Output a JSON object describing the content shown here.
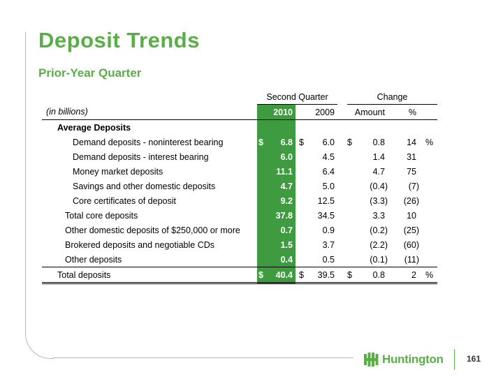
{
  "slide": {
    "title": "Deposit Trends",
    "subtitle": "Prior-Year Quarter",
    "page_number": "161",
    "logo_text": "Huntington",
    "accent_color": "#5aae46",
    "highlight_color": "#3f9b3f"
  },
  "table": {
    "group_headers": {
      "second_quarter": "Second Quarter",
      "change": "Change"
    },
    "column_headers": {
      "units": "(in billions)",
      "col_2010": "2010",
      "col_2009": "2009",
      "amount": "Amount",
      "pct": "%"
    },
    "section_label": "Average Deposits",
    "rows": [
      {
        "label": "Demand deposits - noninterest bearing",
        "cur_sign": "$",
        "v2010": "6.8",
        "prior_sign": "$",
        "v2009": "6.0",
        "amt_sign": "$",
        "amount": "0.8",
        "pct": "14",
        "pct_sym": "%"
      },
      {
        "label": "Demand deposits - interest bearing",
        "cur_sign": "",
        "v2010": "6.0",
        "prior_sign": "",
        "v2009": "4.5",
        "amt_sign": "",
        "amount": "1.4",
        "pct": "31",
        "pct_sym": ""
      },
      {
        "label": "Money market deposits",
        "cur_sign": "",
        "v2010": "11.1",
        "prior_sign": "",
        "v2009": "6.4",
        "amt_sign": "",
        "amount": "4.7",
        "pct": "75",
        "pct_sym": ""
      },
      {
        "label": "Savings and other domestic deposits",
        "cur_sign": "",
        "v2010": "4.7",
        "prior_sign": "",
        "v2009": "5.0",
        "amt_sign": "",
        "amount": "(0.4)",
        "pct": "(7)",
        "pct_sym": ""
      },
      {
        "label": "Core certificates of deposit",
        "cur_sign": "",
        "v2010": "9.2",
        "prior_sign": "",
        "v2009": "12.5",
        "amt_sign": "",
        "amount": "(3.3)",
        "pct": "(26)",
        "pct_sym": ""
      }
    ],
    "subtotal_rows": [
      {
        "label": "Total core deposits",
        "v2010": "37.8",
        "v2009": "34.5",
        "amount": "3.3",
        "pct": "10"
      },
      {
        "label": "Other domestic deposits of $250,000 or more",
        "v2010": "0.7",
        "v2009": "0.9",
        "amount": "(0.2)",
        "pct": "(25)"
      },
      {
        "label": "Brokered deposits and negotiable CDs",
        "v2010": "1.5",
        "v2009": "3.7",
        "amount": "(2.2)",
        "pct": "(60)"
      },
      {
        "label": "Other deposits",
        "v2010": "0.4",
        "v2009": "0.5",
        "amount": "(0.1)",
        "pct": "(11)"
      }
    ],
    "total_row": {
      "label": "Total deposits",
      "cur_sign": "$",
      "v2010": "40.4",
      "prior_sign": "$",
      "v2009": "39.5",
      "amt_sign": "$",
      "amount": "0.8",
      "pct": "2",
      "pct_sym": "%"
    }
  }
}
